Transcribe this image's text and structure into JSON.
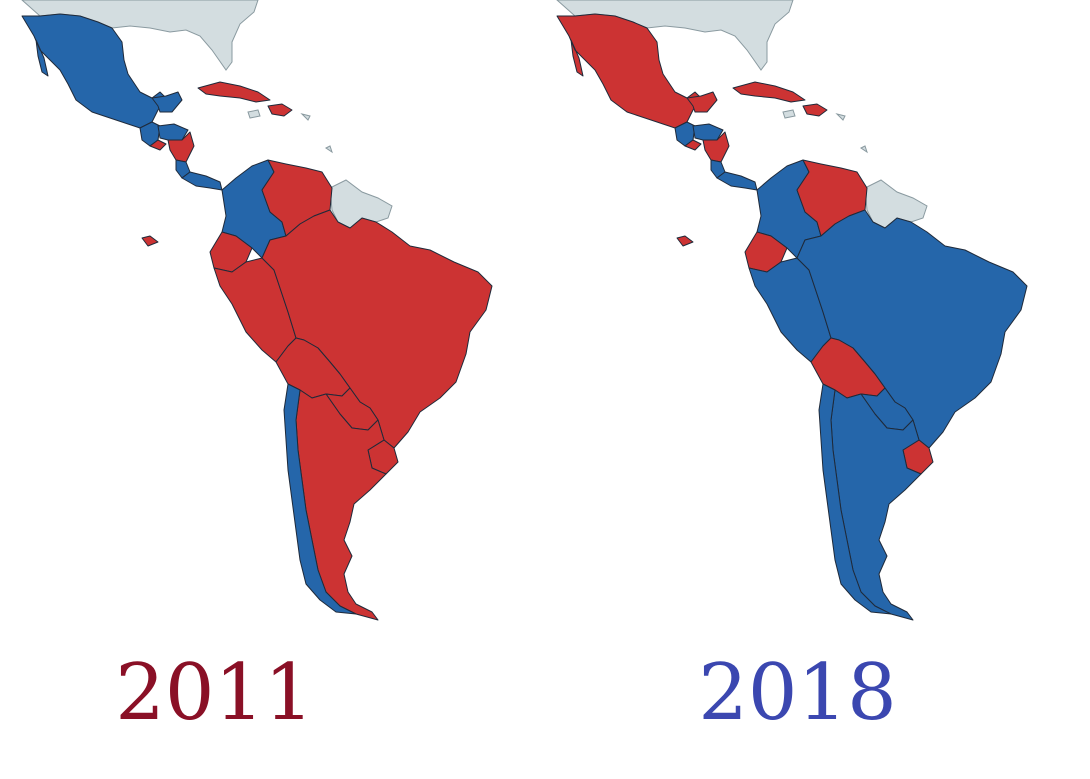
{
  "colors": {
    "left_leaning": "#cc3333",
    "right_leaning": "#2566aa",
    "no_data": "#d3dde0",
    "year_2011": "#8a1026",
    "year_2018": "#3b47b0"
  },
  "maps": [
    {
      "year": "2011",
      "countries": {
        "mexico": "right",
        "guatemala": "right",
        "honduras": "right",
        "el_salvador": "left",
        "nicaragua": "left",
        "costa_rica": "right",
        "panama": "right",
        "cuba": "left",
        "dominican_republic": "left",
        "colombia": "right",
        "venezuela": "left",
        "ecuador": "left",
        "peru": "left",
        "brazil": "left",
        "bolivia": "left",
        "paraguay": "left",
        "uruguay": "left",
        "argentina": "left",
        "chile": "right"
      }
    },
    {
      "year": "2018",
      "countries": {
        "mexico": "left",
        "guatemala": "right",
        "honduras": "right",
        "el_salvador": "left",
        "nicaragua": "left",
        "costa_rica": "right",
        "panama": "right",
        "cuba": "left",
        "dominican_republic": "left",
        "colombia": "right",
        "venezuela": "left",
        "ecuador": "left",
        "peru": "right",
        "brazil": "right",
        "bolivia": "left",
        "paraguay": "right",
        "uruguay": "left",
        "argentina": "right",
        "chile": "right"
      }
    }
  ]
}
